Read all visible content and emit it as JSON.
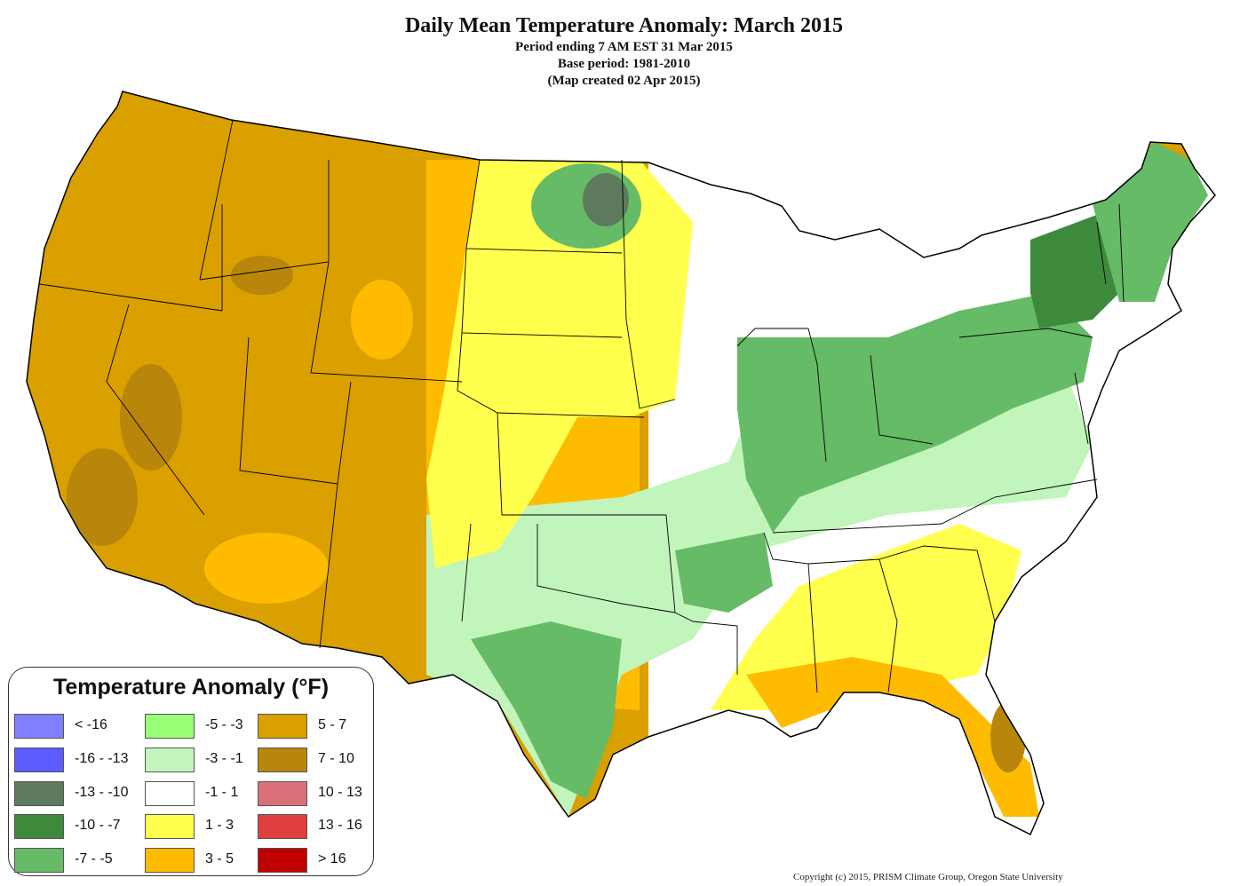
{
  "header": {
    "title": "Daily Mean Temperature Anomaly: March 2015",
    "subtitle_1": "Period ending 7 AM EST 31 Mar 2015",
    "subtitle_2": "Base period: 1981-2010",
    "subtitle_3": "(Map created 02 Apr 2015)"
  },
  "legend": {
    "title": "Temperature Anomaly (°F)",
    "items": [
      {
        "label": "< -16",
        "color": "#8080ff"
      },
      {
        "label": "-16 - -13",
        "color": "#5c5cff"
      },
      {
        "label": "-13 - -10",
        "color": "#5e7a5e"
      },
      {
        "label": "-10 - -7",
        "color": "#3d8a3d"
      },
      {
        "label": "-7 - -5",
        "color": "#66bb66"
      },
      {
        "label": "-5 - -3",
        "color": "#99ff77"
      },
      {
        "label": "-3 - -1",
        "color": "#c2f5bb"
      },
      {
        "label": "-1 - 1",
        "color": "#ffffff"
      },
      {
        "label": "1 - 3",
        "color": "#ffff4d"
      },
      {
        "label": "3 - 5",
        "color": "#ffbb00"
      },
      {
        "label": "5 - 7",
        "color": "#d9a000"
      },
      {
        "label": "7 - 10",
        "color": "#b8860b"
      },
      {
        "label": "10 - 13",
        "color": "#d9707a"
      },
      {
        "label": "13 - 16",
        "color": "#e04040"
      },
      {
        "label": "> 16",
        "color": "#c00000"
      }
    ]
  },
  "footer": {
    "copyright": "Copyright (c) 2015, PRISM Climate Group, Oregon State University"
  },
  "map_colors": {
    "water": "#ffffff",
    "border": "#000000"
  }
}
